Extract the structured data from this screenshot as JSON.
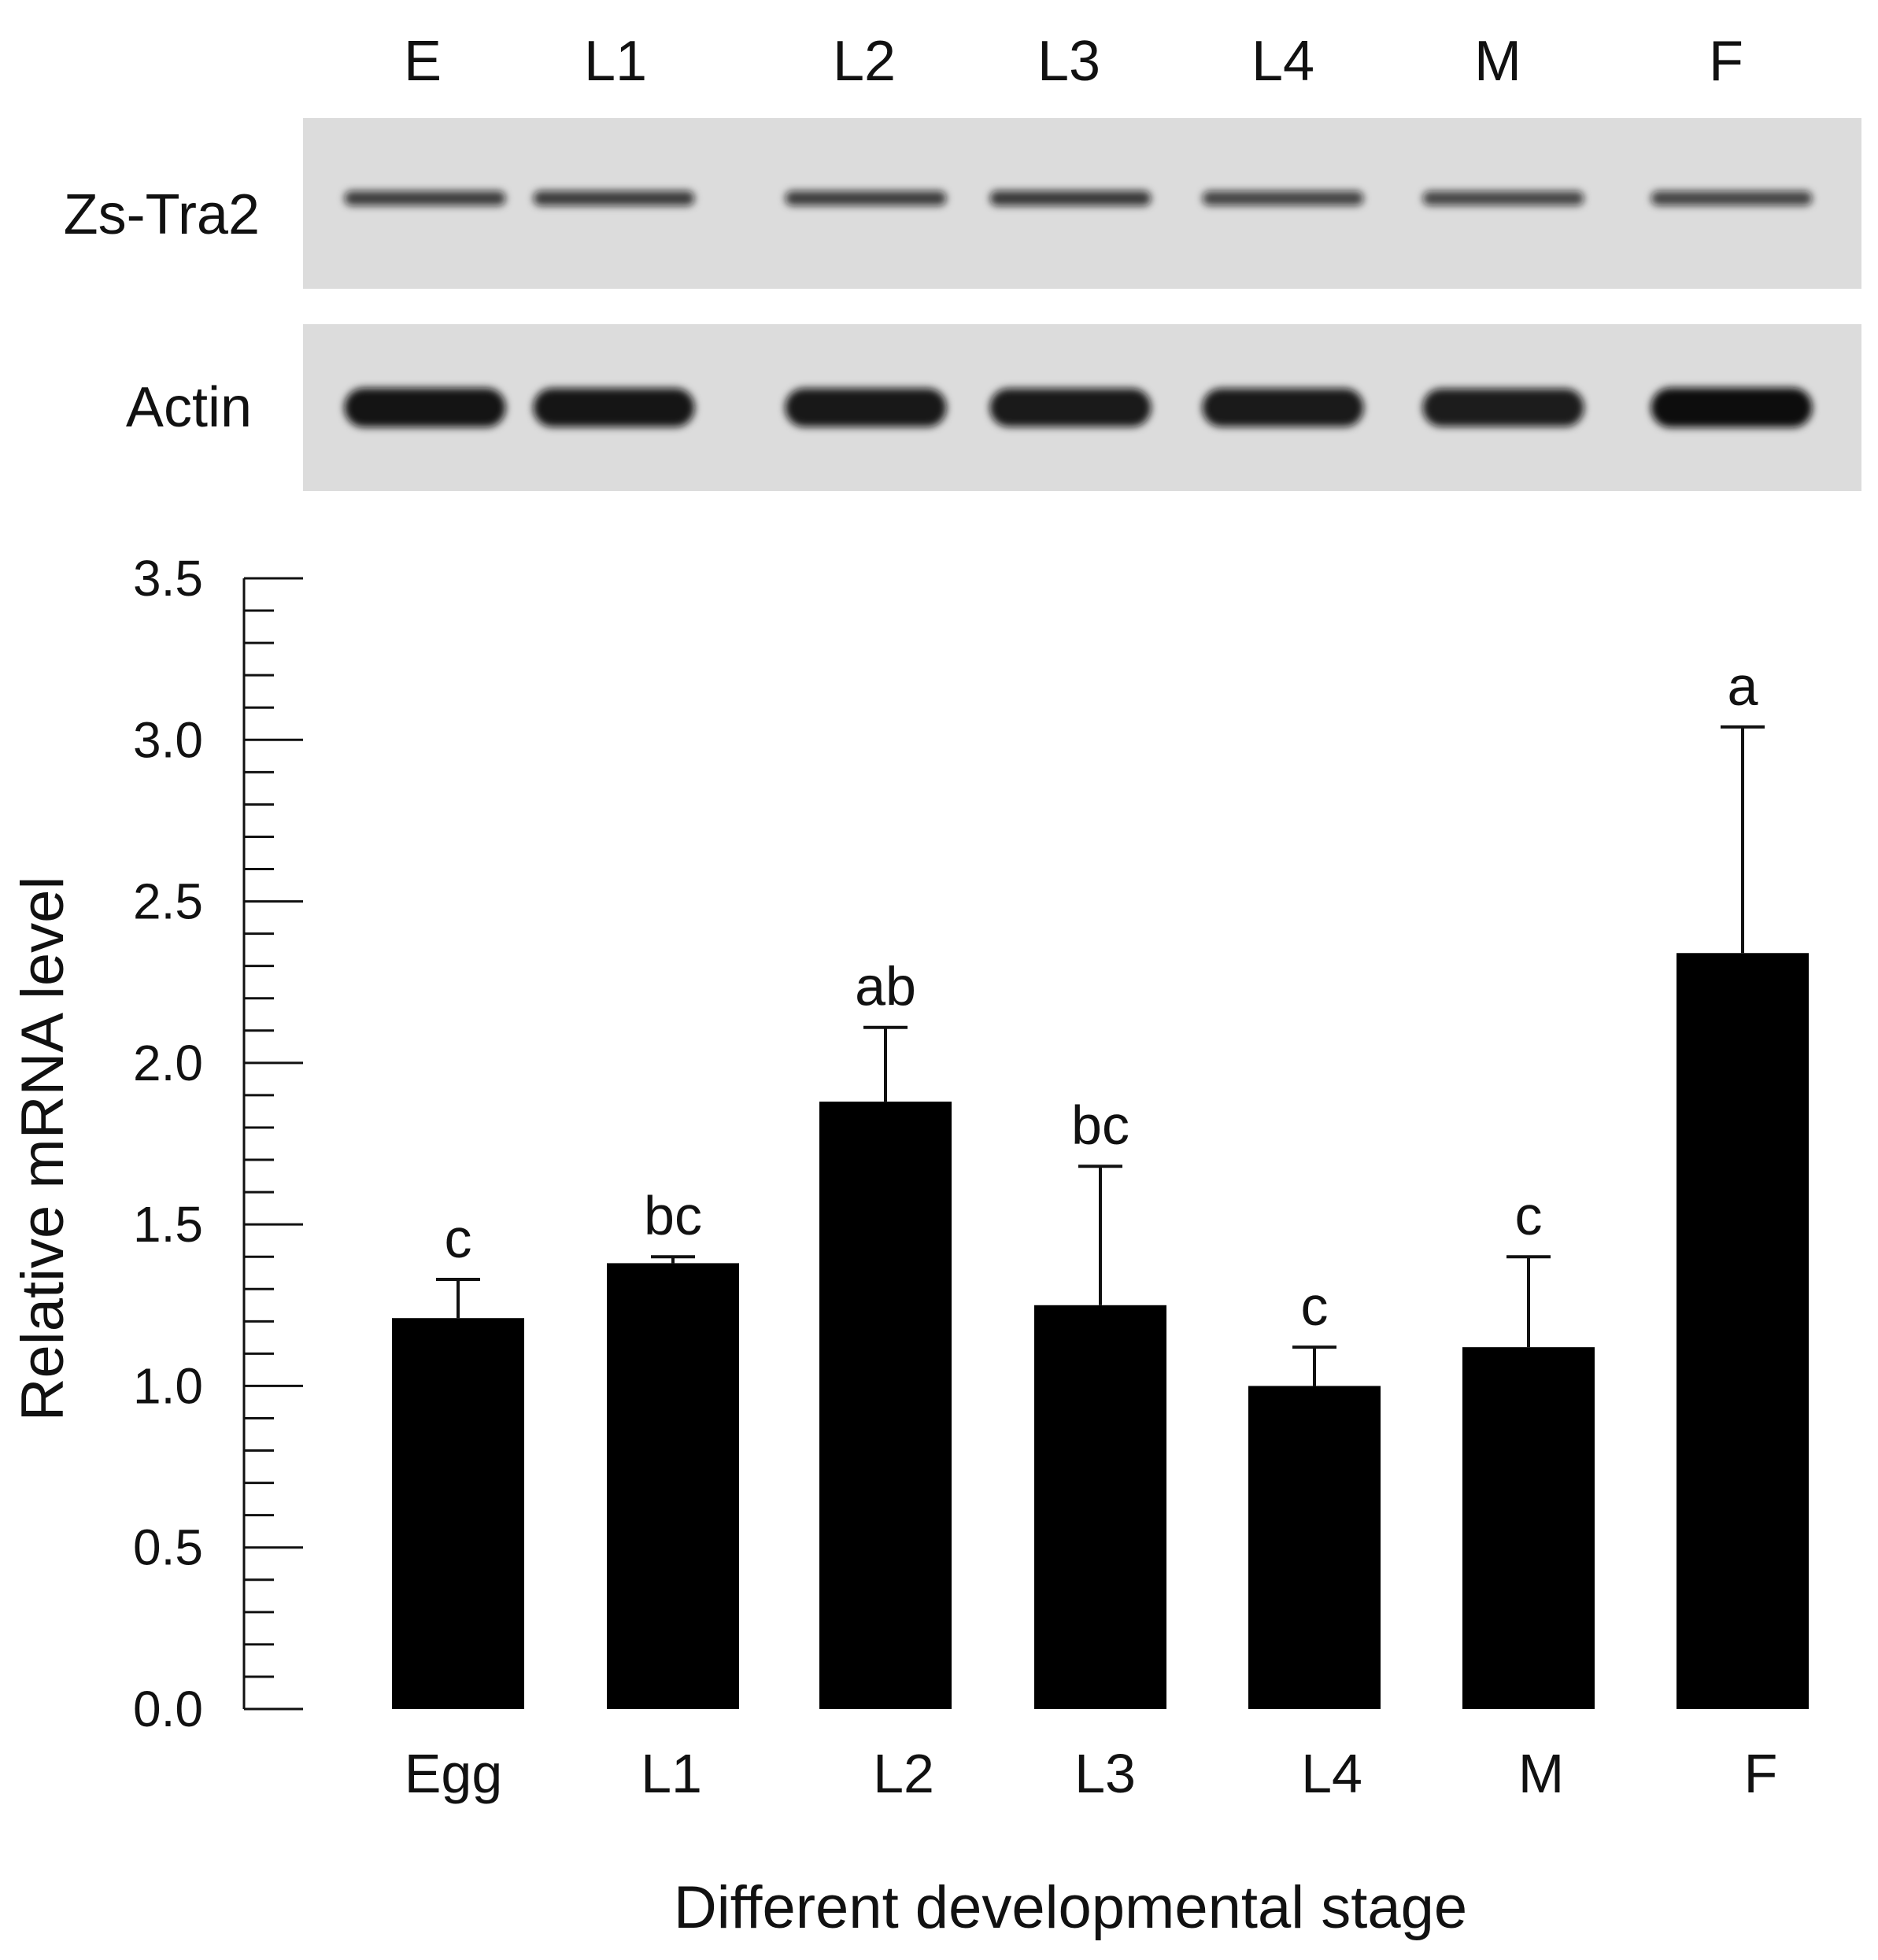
{
  "gel": {
    "lanes": [
      "E",
      "L1",
      "L2",
      "L3",
      "L4",
      "M",
      "F"
    ],
    "rows": [
      {
        "name": "Zs-Tra2",
        "band_intensity": [
          0.55,
          0.58,
          0.55,
          0.6,
          0.5,
          0.48,
          0.5
        ]
      },
      {
        "name": "Actin",
        "band_intensity": [
          0.95,
          0.92,
          0.9,
          0.88,
          0.88,
          0.86,
          1.0
        ]
      }
    ],
    "background_color": "#dcdcdc",
    "band_color": "#111111"
  },
  "chart_data": {
    "type": "bar",
    "categories": [
      "Egg",
      "L1",
      "L2",
      "L3",
      "L4",
      "M",
      "F"
    ],
    "values": [
      1.21,
      1.38,
      1.88,
      1.25,
      1.0,
      1.12,
      2.34
    ],
    "errors": [
      0.12,
      0.02,
      0.23,
      0.43,
      0.12,
      0.28,
      0.7
    ],
    "significance": [
      "c",
      "bc",
      "ab",
      "bc",
      "c",
      "c",
      "a"
    ],
    "title": "",
    "xlabel": "Different developmental stage",
    "ylabel": "Relative mRNA level",
    "ylim": [
      0,
      3.5
    ],
    "yticks": [
      "0.0",
      "0.5",
      "1.0",
      "1.5",
      "2.0",
      "2.5",
      "3.0",
      "3.5"
    ],
    "minor_ticks_per_major": 5,
    "bar_color": "#000000",
    "grid": false
  }
}
